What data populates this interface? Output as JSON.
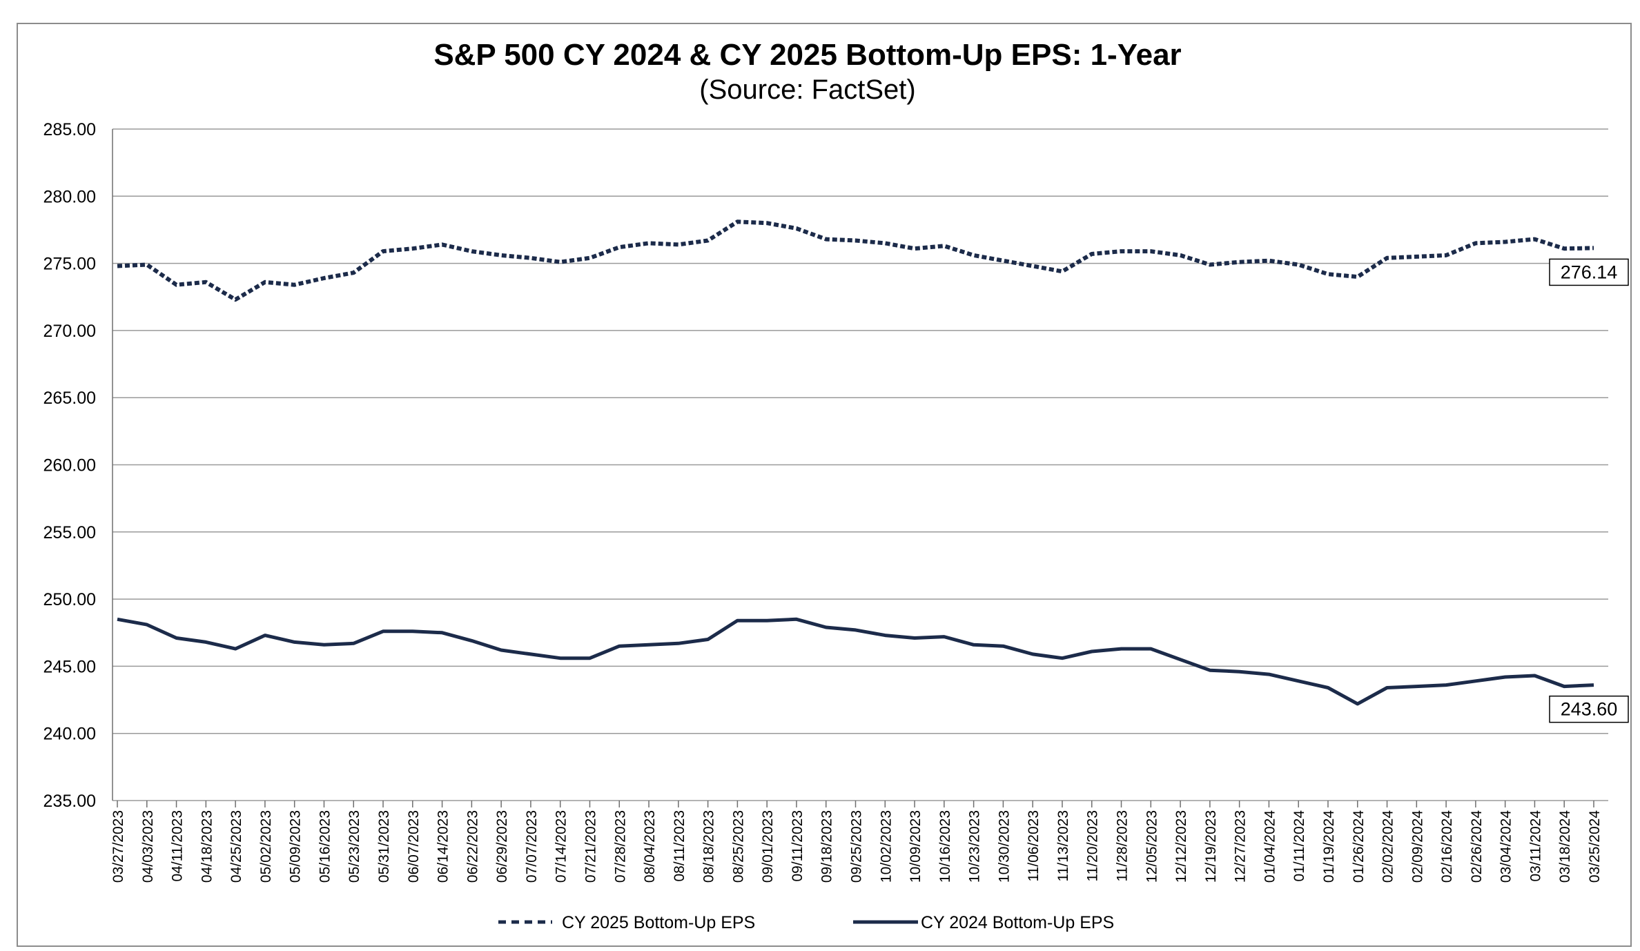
{
  "chart_data": {
    "type": "line",
    "title": "S&P 500 CY 2024 & CY 2025 Bottom-Up EPS: 1-Year",
    "subtitle": "(Source: FactSet)",
    "xlabel": "",
    "ylabel": "",
    "ylim": [
      235,
      285
    ],
    "y_ticks": [
      "285.00",
      "280.00",
      "275.00",
      "270.00",
      "265.00",
      "260.00",
      "255.00",
      "250.00",
      "245.00",
      "240.00",
      "235.00"
    ],
    "y_tick_values": [
      285,
      280,
      275,
      270,
      265,
      260,
      255,
      250,
      245,
      240,
      235
    ],
    "grid": true,
    "legend_position": "bottom",
    "colors": {
      "series": "#1c2b4a",
      "grid": "#9a9a9a",
      "frame": "#8c8c8c"
    },
    "x_ticks": [
      "03/27/2023",
      "04/03/2023",
      "04/11/2023",
      "04/18/2023",
      "04/25/2023",
      "05/02/2023",
      "05/09/2023",
      "05/16/2023",
      "05/23/2023",
      "05/31/2023",
      "06/07/2023",
      "06/14/2023",
      "06/22/2023",
      "06/29/2023",
      "07/07/2023",
      "07/14/2023",
      "07/21/2023",
      "07/28/2023",
      "08/04/2023",
      "08/11/2023",
      "08/18/2023",
      "08/25/2023",
      "09/01/2023",
      "09/11/2023",
      "09/18/2023",
      "09/25/2023",
      "10/02/2023",
      "10/09/2023",
      "10/16/2023",
      "10/23/2023",
      "10/30/2023",
      "11/06/2023",
      "11/13/2023",
      "11/20/2023",
      "11/28/2023",
      "12/05/2023",
      "12/12/2023",
      "12/19/2023",
      "12/27/2023",
      "01/04/2024",
      "01/11/2024",
      "01/19/2024",
      "01/26/2024",
      "02/02/2024",
      "02/09/2024",
      "02/16/2024",
      "02/26/2024",
      "03/04/2024",
      "03/11/2024",
      "03/18/2024",
      "03/25/2024"
    ],
    "series": [
      {
        "name": "CY 2025 Bottom-Up EPS",
        "style": "dashed",
        "values": [
          274.8,
          274.9,
          273.4,
          273.6,
          272.3,
          273.6,
          273.4,
          273.9,
          274.3,
          275.9,
          276.1,
          276.4,
          275.9,
          275.6,
          275.4,
          275.1,
          275.4,
          276.2,
          276.5,
          276.4,
          276.7,
          278.1,
          278.0,
          277.6,
          276.8,
          276.7,
          276.5,
          276.1,
          276.3,
          275.6,
          275.2,
          274.8,
          274.4,
          275.7,
          275.9,
          275.9,
          275.6,
          274.9,
          275.1,
          275.2,
          274.9,
          274.2,
          274.0,
          275.4,
          275.5,
          275.6,
          276.5,
          276.6,
          276.8,
          276.1,
          276.14
        ],
        "end_label": "276.14"
      },
      {
        "name": "CY 2024 Bottom-Up EPS",
        "style": "solid",
        "values": [
          248.5,
          248.1,
          247.1,
          246.8,
          246.3,
          247.3,
          246.8,
          246.6,
          246.7,
          247.6,
          247.6,
          247.5,
          246.9,
          246.2,
          245.9,
          245.6,
          245.6,
          246.5,
          246.6,
          246.7,
          247.0,
          248.4,
          248.4,
          248.5,
          247.9,
          247.7,
          247.3,
          247.1,
          247.2,
          246.6,
          246.5,
          245.9,
          245.6,
          246.1,
          246.3,
          246.3,
          245.5,
          244.7,
          244.6,
          244.4,
          243.9,
          243.4,
          242.2,
          243.4,
          243.5,
          243.6,
          243.9,
          244.2,
          244.3,
          243.5,
          243.6
        ],
        "end_label": "243.60"
      }
    ]
  }
}
